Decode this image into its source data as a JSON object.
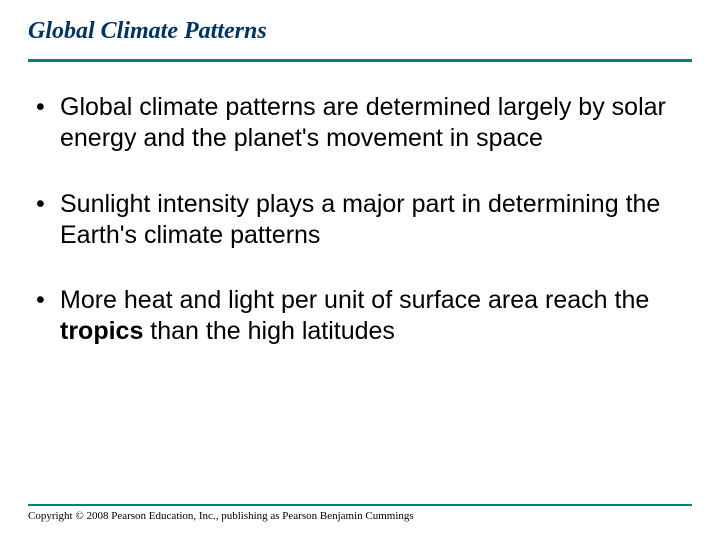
{
  "title": "Global Climate Patterns",
  "title_color": "#003465",
  "title_fontsize": 24,
  "rule_color": "#008080",
  "background_color": "#ffffff",
  "body_fontsize": 25,
  "body_color": "#000000",
  "bullets": [
    {
      "pre": "Global climate patterns are determined largely by solar energy and the planet's movement in space",
      "bold": "",
      "post": ""
    },
    {
      "pre": "Sunlight intensity plays a major part in determining the Earth's climate patterns",
      "bold": "",
      "post": ""
    },
    {
      "pre": "More heat and light per unit of surface area reach the ",
      "bold": "tropics",
      "post": " than the high latitudes"
    }
  ],
  "copyright": "Copyright © 2008 Pearson Education, Inc., publishing as Pearson Benjamin Cummings",
  "copyright_fontsize": 11
}
